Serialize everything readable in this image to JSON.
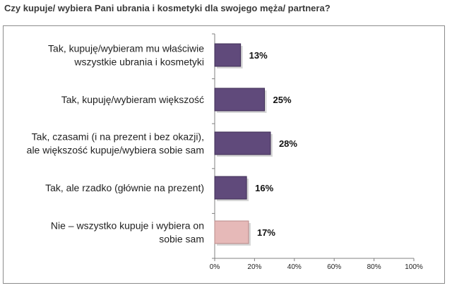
{
  "title": "Czy kupuje/ wybiera Pani ubrania i kosmetyki dla swojego męża/ partnera?",
  "colors": {
    "bar_main": "#604A7B",
    "bar_main_edge": "#3f2f55",
    "bar_highlight": "#E6B9B8",
    "bar_highlight_edge": "#b88a89",
    "axis": "#808080"
  },
  "chart_data": {
    "type": "bar",
    "orientation": "horizontal",
    "categories": [
      [
        "Tak, kupuję/wybieram mu właściwie",
        "wszystkie ubrania i kosmetyki"
      ],
      [
        "Tak, kupuję/wybieram większość"
      ],
      [
        "Tak, czasami (i na prezent i bez okazji),",
        "ale większość kupuje/wybiera sobie sam"
      ],
      [
        "Tak, ale rzadko (głównie na prezent)"
      ],
      [
        "Nie – wszystko kupuje i wybiera on",
        "sobie sam"
      ]
    ],
    "values": [
      13,
      25,
      28,
      16,
      17
    ],
    "data_labels": [
      "13%",
      "25%",
      "28%",
      "16%",
      "17%"
    ],
    "highlight_index": 4,
    "xlim": [
      0,
      100
    ],
    "xticks": [
      "0%",
      "20%",
      "40%",
      "60%",
      "80%",
      "100%"
    ],
    "grid": false,
    "legend": "none"
  }
}
